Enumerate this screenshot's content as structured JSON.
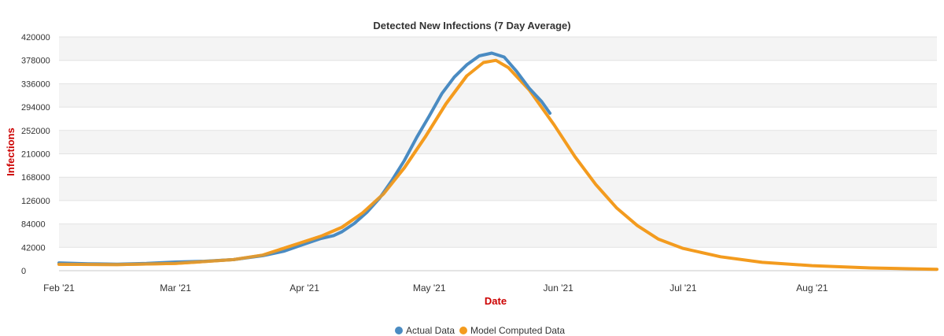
{
  "chart_data": {
    "type": "line",
    "title": "Detected New Infections (7 Day Average)",
    "xlabel": "Date",
    "ylabel": "Infections",
    "axis_title_color": "#cc0000",
    "ylim": [
      0,
      420000
    ],
    "yticks": [
      "0",
      "42000",
      "84000",
      "126000",
      "168000",
      "210000",
      "252000",
      "294000",
      "336000",
      "378000",
      "420000"
    ],
    "xlim": [
      "2021-02-01",
      "2021-08-31"
    ],
    "xticks": [
      {
        "date": "2021-02-01",
        "label": "Feb '21"
      },
      {
        "date": "2021-03-01",
        "label": "Mar '21"
      },
      {
        "date": "2021-04-01",
        "label": "Apr '21"
      },
      {
        "date": "2021-05-01",
        "label": "May '21"
      },
      {
        "date": "2021-06-01",
        "label": "Jun '21"
      },
      {
        "date": "2021-07-01",
        "label": "Jul '21"
      },
      {
        "date": "2021-08-01",
        "label": "Aug '21"
      }
    ],
    "grid": "horizontal alternating bands",
    "legend": "bottom-center",
    "series": [
      {
        "name": "Actual Data",
        "color": "#4a8bc2",
        "points": [
          [
            "2021-02-01",
            14000
          ],
          [
            "2021-02-08",
            12500
          ],
          [
            "2021-02-15",
            11800
          ],
          [
            "2021-02-22",
            13000
          ],
          [
            "2021-03-01",
            15500
          ],
          [
            "2021-03-08",
            17000
          ],
          [
            "2021-03-15",
            20000
          ],
          [
            "2021-03-22",
            27000
          ],
          [
            "2021-03-27",
            35000
          ],
          [
            "2021-04-01",
            48000
          ],
          [
            "2021-04-05",
            58000
          ],
          [
            "2021-04-08",
            63000
          ],
          [
            "2021-04-10",
            70000
          ],
          [
            "2021-04-13",
            85000
          ],
          [
            "2021-04-16",
            105000
          ],
          [
            "2021-04-19",
            130000
          ],
          [
            "2021-04-22",
            162000
          ],
          [
            "2021-04-25",
            198000
          ],
          [
            "2021-04-28",
            240000
          ],
          [
            "2021-05-01",
            278000
          ],
          [
            "2021-05-04",
            318000
          ],
          [
            "2021-05-07",
            348000
          ],
          [
            "2021-05-10",
            370000
          ],
          [
            "2021-05-13",
            386000
          ],
          [
            "2021-05-16",
            391000
          ],
          [
            "2021-05-19",
            384000
          ],
          [
            "2021-05-22",
            358000
          ],
          [
            "2021-05-25",
            328000
          ],
          [
            "2021-05-28",
            304000
          ],
          [
            "2021-05-30",
            283000
          ]
        ]
      },
      {
        "name": "Model Computed Data",
        "color": "#f39b1e",
        "points": [
          [
            "2021-02-01",
            11500
          ],
          [
            "2021-02-15",
            11000
          ],
          [
            "2021-03-01",
            13000
          ],
          [
            "2021-03-15",
            20000
          ],
          [
            "2021-03-22",
            28000
          ],
          [
            "2021-03-29",
            45000
          ],
          [
            "2021-04-05",
            62000
          ],
          [
            "2021-04-10",
            78000
          ],
          [
            "2021-04-15",
            104000
          ],
          [
            "2021-04-20",
            138000
          ],
          [
            "2021-04-25",
            185000
          ],
          [
            "2021-04-30",
            240000
          ],
          [
            "2021-05-05",
            300000
          ],
          [
            "2021-05-10",
            350000
          ],
          [
            "2021-05-14",
            374000
          ],
          [
            "2021-05-17",
            378000
          ],
          [
            "2021-05-20",
            365000
          ],
          [
            "2021-05-25",
            325000
          ],
          [
            "2021-05-31",
            262000
          ],
          [
            "2021-06-05",
            205000
          ],
          [
            "2021-06-10",
            155000
          ],
          [
            "2021-06-15",
            113000
          ],
          [
            "2021-06-20",
            81000
          ],
          [
            "2021-06-25",
            57000
          ],
          [
            "2021-07-01",
            40000
          ],
          [
            "2021-07-10",
            25000
          ],
          [
            "2021-07-20",
            15000
          ],
          [
            "2021-08-01",
            9000
          ],
          [
            "2021-08-15",
            5000
          ],
          [
            "2021-08-31",
            2500
          ]
        ]
      }
    ]
  }
}
